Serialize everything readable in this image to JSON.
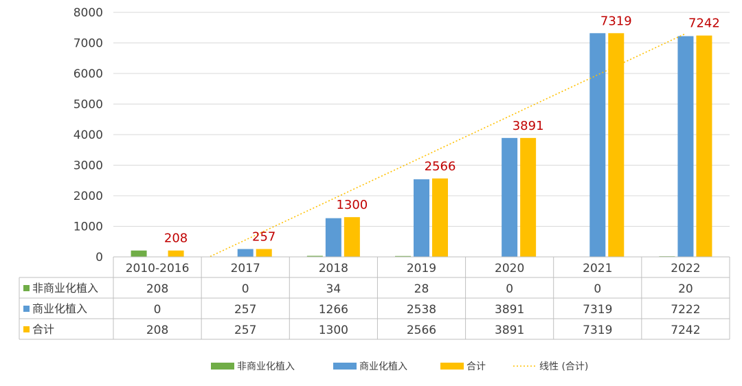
{
  "chart_data": {
    "type": "bar",
    "categories": [
      "2010-2016",
      "2017",
      "2018",
      "2019",
      "2020",
      "2021",
      "2022"
    ],
    "series": [
      {
        "name": "非商业化植入",
        "values": [
          208,
          0,
          34,
          28,
          0,
          0,
          20
        ],
        "color": "#70ad47"
      },
      {
        "name": "商业化植入",
        "values": [
          0,
          257,
          1266,
          2538,
          3891,
          7319,
          7222
        ],
        "color": "#5b9bd5"
      },
      {
        "name": "合计",
        "values": [
          208,
          257,
          1300,
          2566,
          3891,
          7319,
          7242
        ],
        "color": "#ffc000"
      }
    ],
    "data_labels_series": "合计",
    "data_label_color": "#c00000",
    "trendline": {
      "name": "线性 (合计)",
      "type": "linear",
      "of": "合计",
      "color": "#ffc000",
      "style": "dotted"
    },
    "ylim": [
      0,
      8000
    ],
    "yticks": [
      0,
      1000,
      2000,
      3000,
      4000,
      5000,
      6000,
      7000,
      8000
    ],
    "grid": true,
    "data_table": true,
    "legend": "bottom"
  }
}
